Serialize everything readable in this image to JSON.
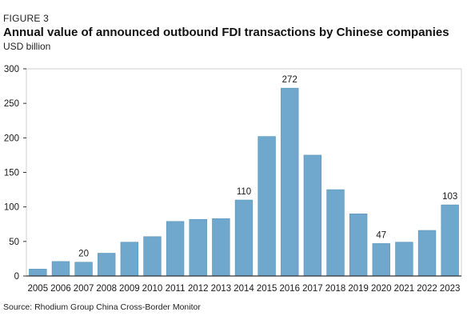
{
  "figure_label": "FIGURE 3",
  "source": "Source: Rhodium Group China Cross-Border Monitor",
  "colors": {
    "bar": "#6fa8cc",
    "bar_edge": "#5b95bb",
    "axis": "#333333",
    "grid_frame": "#cfcfcf"
  },
  "chart_data": {
    "type": "bar",
    "title": "Annual value of announced outbound FDI transactions by Chinese companies",
    "subtitle": "USD billion",
    "xlabel": "",
    "ylabel": "",
    "categories": [
      "2005",
      "2006",
      "2007",
      "2008",
      "2009",
      "2010",
      "2011",
      "2012",
      "2013",
      "2014",
      "2015",
      "2016",
      "2017",
      "2018",
      "2019",
      "2020",
      "2021",
      "2022",
      "2023"
    ],
    "values": [
      10,
      21,
      20,
      33,
      49,
      57,
      79,
      82,
      83,
      110,
      202,
      272,
      175,
      125,
      90,
      47,
      49,
      66,
      103
    ],
    "data_labels": {
      "2007": "20",
      "2014": "110",
      "2016": "272",
      "2020": "47",
      "2023": "103"
    },
    "ylim": [
      0,
      300
    ],
    "yticks": [
      0,
      50,
      100,
      150,
      200,
      250,
      300
    ],
    "grid": false,
    "legend": "none"
  }
}
